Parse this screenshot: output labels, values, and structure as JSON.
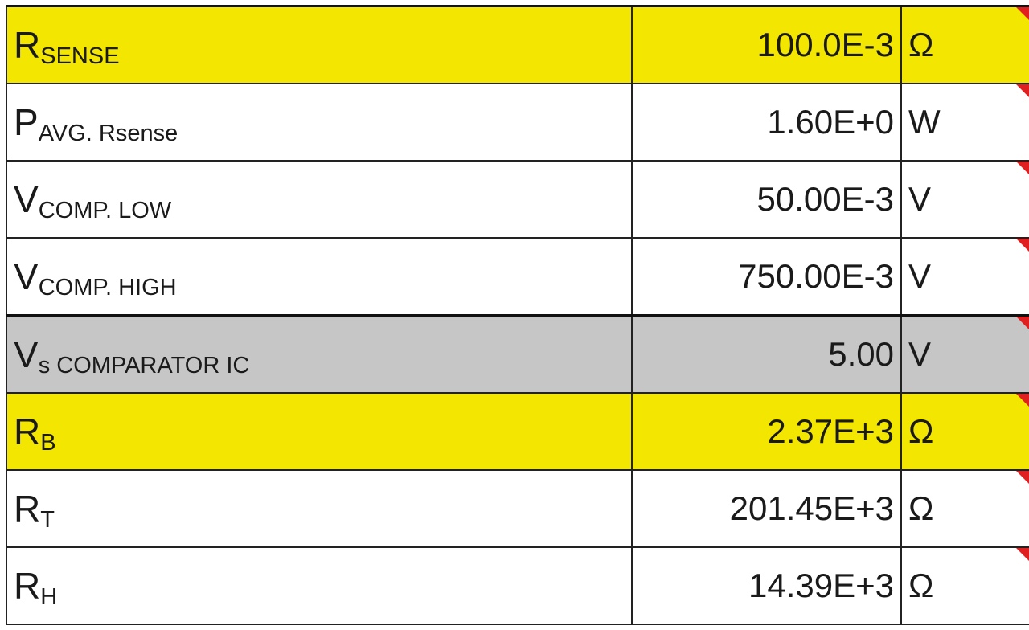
{
  "colors": {
    "yellow": "#f3e600",
    "gray": "#c6c6c6",
    "white": "#ffffff",
    "comment_marker": "#e02020"
  },
  "rows": [
    {
      "symbol": "R",
      "subscript": "SENSE",
      "value": "100.0E-3",
      "unit": "Ω",
      "fill": "yellow"
    },
    {
      "symbol": "P",
      "subscript": "AVG. Rsense",
      "value": "1.60E+0",
      "unit": "W",
      "fill": "white"
    },
    {
      "symbol": "V",
      "subscript": "COMP. LOW",
      "value": "50.00E-3",
      "unit": "V",
      "fill": "white"
    },
    {
      "symbol": "V",
      "subscript": "COMP. HIGH",
      "value": "750.00E-3",
      "unit": "V",
      "fill": "white"
    },
    {
      "symbol": "V",
      "subscript": "s COMPARATOR IC",
      "value": "5.00",
      "unit": "V",
      "fill": "gray"
    },
    {
      "symbol": "R",
      "subscript": "B",
      "value": "2.37E+3",
      "unit": "Ω",
      "fill": "yellow"
    },
    {
      "symbol": "R",
      "subscript": "T",
      "value": "201.45E+3",
      "unit": "Ω",
      "fill": "white"
    },
    {
      "symbol": "R",
      "subscript": "H",
      "value": "14.39E+3",
      "unit": "Ω",
      "fill": "white"
    }
  ]
}
